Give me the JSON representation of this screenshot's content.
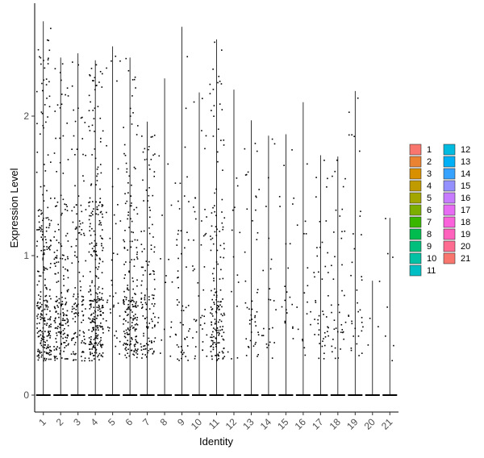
{
  "chart_data": {
    "type": "violin",
    "xlabel": "Identity",
    "ylabel": "Expression Level",
    "ylim": [
      -0.13,
      2.8
    ],
    "yticks": [
      0,
      1,
      2
    ],
    "categories": [
      "1",
      "2",
      "3",
      "4",
      "5",
      "6",
      "7",
      "8",
      "9",
      "10",
      "11",
      "12",
      "13",
      "14",
      "15",
      "16",
      "17",
      "18",
      "19",
      "20",
      "21"
    ],
    "colors": [
      "#F8766D",
      "#EA8331",
      "#D89000",
      "#C09B00",
      "#A3A500",
      "#7CAE00",
      "#39B600",
      "#00BB4E",
      "#00BF7D",
      "#00C1A3",
      "#00BFC4",
      "#00BAE0",
      "#00B0F6",
      "#35A2FF",
      "#9590FF",
      "#C77CFF",
      "#E76BF3",
      "#FA62DB",
      "#FF62BC",
      "#FF6C91",
      "#F8766D"
    ],
    "max_expression": [
      2.68,
      2.42,
      2.45,
      2.4,
      2.5,
      2.42,
      1.96,
      2.27,
      2.64,
      2.17,
      2.55,
      2.19,
      1.97,
      1.86,
      1.87,
      2.1,
      1.72,
      1.71,
      2.18,
      0.82,
      1.27
    ],
    "point_density": [
      260,
      190,
      130,
      290,
      40,
      200,
      130,
      18,
      55,
      45,
      170,
      14,
      45,
      24,
      22,
      18,
      45,
      40,
      35,
      4,
      7
    ],
    "legend": {
      "title": "",
      "items": [
        "1",
        "2",
        "3",
        "4",
        "5",
        "6",
        "7",
        "8",
        "9",
        "10",
        "11",
        "12",
        "13",
        "14",
        "15",
        "16",
        "17",
        "18",
        "19",
        "20",
        "21"
      ]
    },
    "grid": false
  }
}
